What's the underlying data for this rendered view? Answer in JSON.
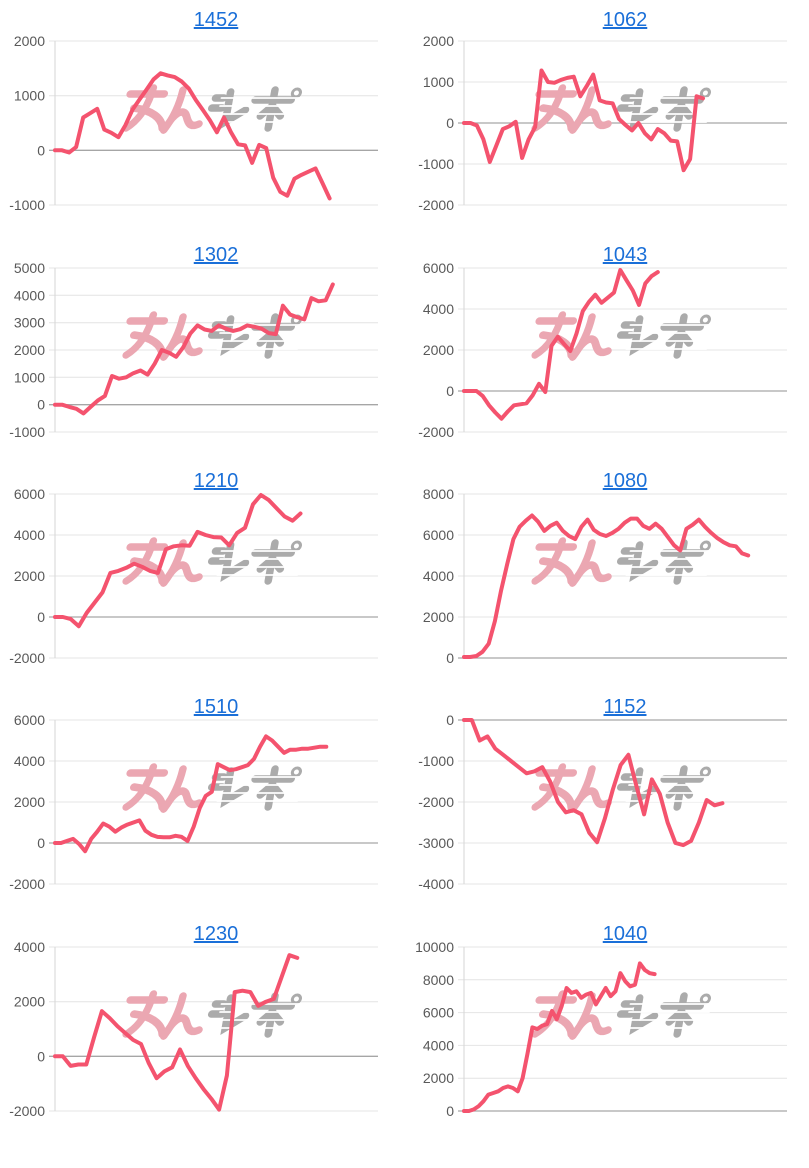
{
  "page": {
    "background": "#ffffff",
    "description_labels": {
      "watermark_left": "みん",
      "watermark_right": "レポ"
    }
  },
  "style": {
    "line_color": "#f4536e",
    "title_color": "#1a6fd8",
    "grid_color": "#e4e4e4",
    "zero_line_color": "#a6a6a6",
    "axis_line_color": "#d6d6d6",
    "axis_label_color": "#595959",
    "watermark_pink": "#eba7b2",
    "watermark_gray": "#ababab"
  },
  "chart_data": [
    {
      "type": "line",
      "title": "1452",
      "ylim": [
        -1000,
        2000
      ],
      "ytick_step": 1000,
      "span_frac": 0.85,
      "grid": true,
      "values": [
        0,
        0,
        -40,
        60,
        600,
        680,
        760,
        380,
        320,
        240,
        460,
        740,
        930,
        1110,
        1300,
        1410,
        1370,
        1340,
        1260,
        1130,
        920,
        740,
        550,
        330,
        600,
        330,
        110,
        90,
        -230,
        100,
        40,
        -500,
        -760,
        -830,
        -520,
        -450,
        -390,
        -330,
        -600,
        -880
      ]
    },
    {
      "type": "line",
      "title": "1062",
      "ylim": [
        -2000,
        2000
      ],
      "ytick_step": 1000,
      "span_frac": 0.74,
      "grid": true,
      "values": [
        0,
        0,
        -60,
        -400,
        -950,
        -550,
        -150,
        -80,
        30,
        -850,
        -400,
        -100,
        1280,
        1000,
        980,
        1050,
        1100,
        1130,
        650,
        900,
        1180,
        550,
        500,
        480,
        100,
        -50,
        -180,
        0,
        -250,
        -400,
        -150,
        -250,
        -430,
        -450,
        -1150,
        -880,
        650,
        600
      ]
    },
    {
      "type": "line",
      "title": "1302",
      "ylim": [
        -1000,
        5000
      ],
      "ytick_step": 1000,
      "span_frac": 0.86,
      "grid": true,
      "values": [
        0,
        0,
        -80,
        -150,
        -320,
        -80,
        150,
        320,
        1050,
        950,
        1000,
        1150,
        1250,
        1100,
        1500,
        2000,
        1900,
        1750,
        2100,
        2600,
        2900,
        2750,
        2700,
        2900,
        2780,
        2700,
        2760,
        2900,
        2850,
        2780,
        2620,
        2580,
        3620,
        3300,
        3200,
        3120,
        3900,
        3780,
        3820,
        4400
      ]
    },
    {
      "type": "line",
      "title": "1043",
      "ylim": [
        -2000,
        6000
      ],
      "ytick_step": 2000,
      "span_frac": 0.6,
      "grid": true,
      "values": [
        0,
        0,
        0,
        -250,
        -700,
        -1050,
        -1350,
        -1000,
        -700,
        -650,
        -600,
        -200,
        350,
        -50,
        2200,
        2650,
        2300,
        1950,
        2800,
        3900,
        4350,
        4700,
        4300,
        4550,
        4800,
        5900,
        5400,
        4900,
        4200,
        5250,
        5600,
        5800
      ]
    },
    {
      "type": "line",
      "title": "1210",
      "ylim": [
        -2000,
        6000
      ],
      "ytick_step": 2000,
      "span_frac": 0.76,
      "grid": true,
      "values": [
        0,
        0,
        -100,
        -450,
        200,
        700,
        1200,
        2150,
        2250,
        2400,
        2600,
        2450,
        2250,
        2150,
        3300,
        3450,
        3500,
        3480,
        4150,
        4000,
        3900,
        3880,
        3500,
        4100,
        4350,
        5500,
        5950,
        5700,
        5300,
        4900,
        4700,
        5050
      ]
    },
    {
      "type": "line",
      "title": "1080",
      "ylim": [
        0,
        8000
      ],
      "ytick_step": 2000,
      "span_frac": 0.88,
      "grid": true,
      "values": [
        50,
        50,
        100,
        300,
        700,
        1800,
        3300,
        4600,
        5800,
        6400,
        6700,
        6950,
        6650,
        6200,
        6450,
        6600,
        6200,
        5950,
        5800,
        6400,
        6750,
        6250,
        6050,
        5950,
        6100,
        6300,
        6600,
        6800,
        6800,
        6450,
        6300,
        6550,
        6300,
        5900,
        5500,
        5250,
        6300,
        6500,
        6750,
        6400,
        6100,
        5850,
        5650,
        5500,
        5450,
        5100,
        5000
      ]
    },
    {
      "type": "line",
      "title": "1510",
      "ylim": [
        -2000,
        6000
      ],
      "ytick_step": 2000,
      "span_frac": 0.84,
      "grid": true,
      "values": [
        0,
        0,
        100,
        200,
        -50,
        -400,
        200,
        550,
        950,
        800,
        550,
        750,
        900,
        1000,
        1100,
        600,
        400,
        300,
        280,
        280,
        350,
        300,
        100,
        800,
        1700,
        2300,
        2500,
        3850,
        3700,
        3550,
        3600,
        3700,
        3800,
        4100,
        4700,
        5200,
        5000,
        4700,
        4400,
        4550,
        4550,
        4600,
        4600,
        4650,
        4700,
        4700
      ]
    },
    {
      "type": "line",
      "title": "1152",
      "ylim": [
        -4000,
        0
      ],
      "ytick_step": 1000,
      "span_frac": 0.8,
      "grid": true,
      "values": [
        0,
        0,
        -500,
        -400,
        -700,
        -850,
        -1000,
        -1150,
        -1300,
        -1250,
        -1150,
        -1500,
        -2000,
        -2250,
        -2200,
        -2300,
        -2750,
        -2980,
        -2400,
        -1700,
        -1100,
        -850,
        -1600,
        -2300,
        -1450,
        -1800,
        -2500,
        -3000,
        -3050,
        -2950,
        -2500,
        -1950,
        -2080,
        -2030
      ]
    },
    {
      "type": "line",
      "title": "1230",
      "ylim": [
        -2000,
        4000
      ],
      "ytick_step": 2000,
      "span_frac": 0.75,
      "grid": true,
      "values": [
        0,
        0,
        -350,
        -300,
        -300,
        700,
        1650,
        1400,
        1100,
        850,
        600,
        450,
        -250,
        -800,
        -550,
        -400,
        250,
        -350,
        -800,
        -1200,
        -1550,
        -1950,
        -700,
        2350,
        2400,
        2350,
        1850,
        2000,
        2100,
        2900,
        3700,
        3600
      ]
    },
    {
      "type": "line",
      "title": "1040",
      "ylim": [
        0,
        10000
      ],
      "ytick_step": 2000,
      "span_frac": 0.59,
      "grid": true,
      "values": [
        0,
        0,
        100,
        300,
        600,
        1000,
        1100,
        1200,
        1400,
        1500,
        1400,
        1200,
        2000,
        3500,
        5100,
        5000,
        5200,
        5300,
        6100,
        5600,
        6400,
        7500,
        7200,
        7300,
        6900,
        7100,
        7200,
        6500,
        7000,
        7500,
        7000,
        7300,
        8400,
        7900,
        7600,
        7700,
        9000,
        8600,
        8400,
        8350
      ]
    }
  ]
}
